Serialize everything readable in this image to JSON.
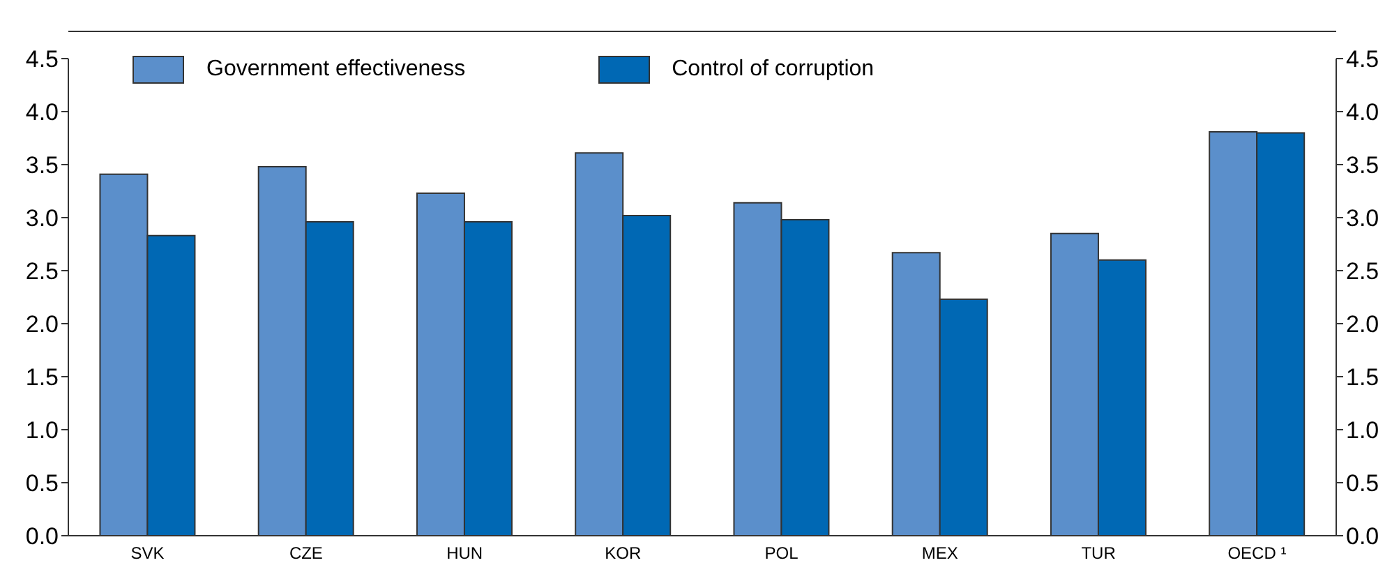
{
  "chart_data": {
    "type": "bar",
    "categories": [
      "SVK",
      "CZE",
      "HUN",
      "KOR",
      "POL",
      "MEX",
      "TUR",
      "OECD ¹"
    ],
    "series": [
      {
        "name": "Government effectiveness",
        "color": "#5b8fcb",
        "values": [
          3.41,
          3.48,
          3.23,
          3.61,
          3.14,
          2.67,
          2.85,
          3.81
        ]
      },
      {
        "name": "Control of corruption",
        "color": "#0068b4",
        "values": [
          2.83,
          2.96,
          2.96,
          3.02,
          2.98,
          2.23,
          2.6,
          3.8
        ]
      }
    ],
    "ylim": [
      0,
      4.5
    ],
    "yticks": [
      {
        "value": 0,
        "label": "0.0"
      },
      0.5,
      {
        "value": 1,
        "label": "1.0"
      },
      1.5,
      {
        "value": 2,
        "label": "2.0"
      },
      2.5,
      {
        "value": 3,
        "label": "3.0"
      },
      3.5,
      {
        "value": 4,
        "label": "4.0"
      },
      4.5
    ],
    "y2lim": [
      0,
      4.5
    ],
    "y2ticks": [
      {
        "value": 0,
        "label": "0.0"
      },
      0.5,
      {
        "value": 1,
        "label": "1.0"
      },
      1.5,
      {
        "value": 2,
        "label": "2.0"
      },
      2.5,
      {
        "value": 3,
        "label": "3.0"
      },
      3.5,
      {
        "value": 4,
        "label": "4.0"
      },
      4.5
    ],
    "grid": false,
    "legend": "top left"
  }
}
